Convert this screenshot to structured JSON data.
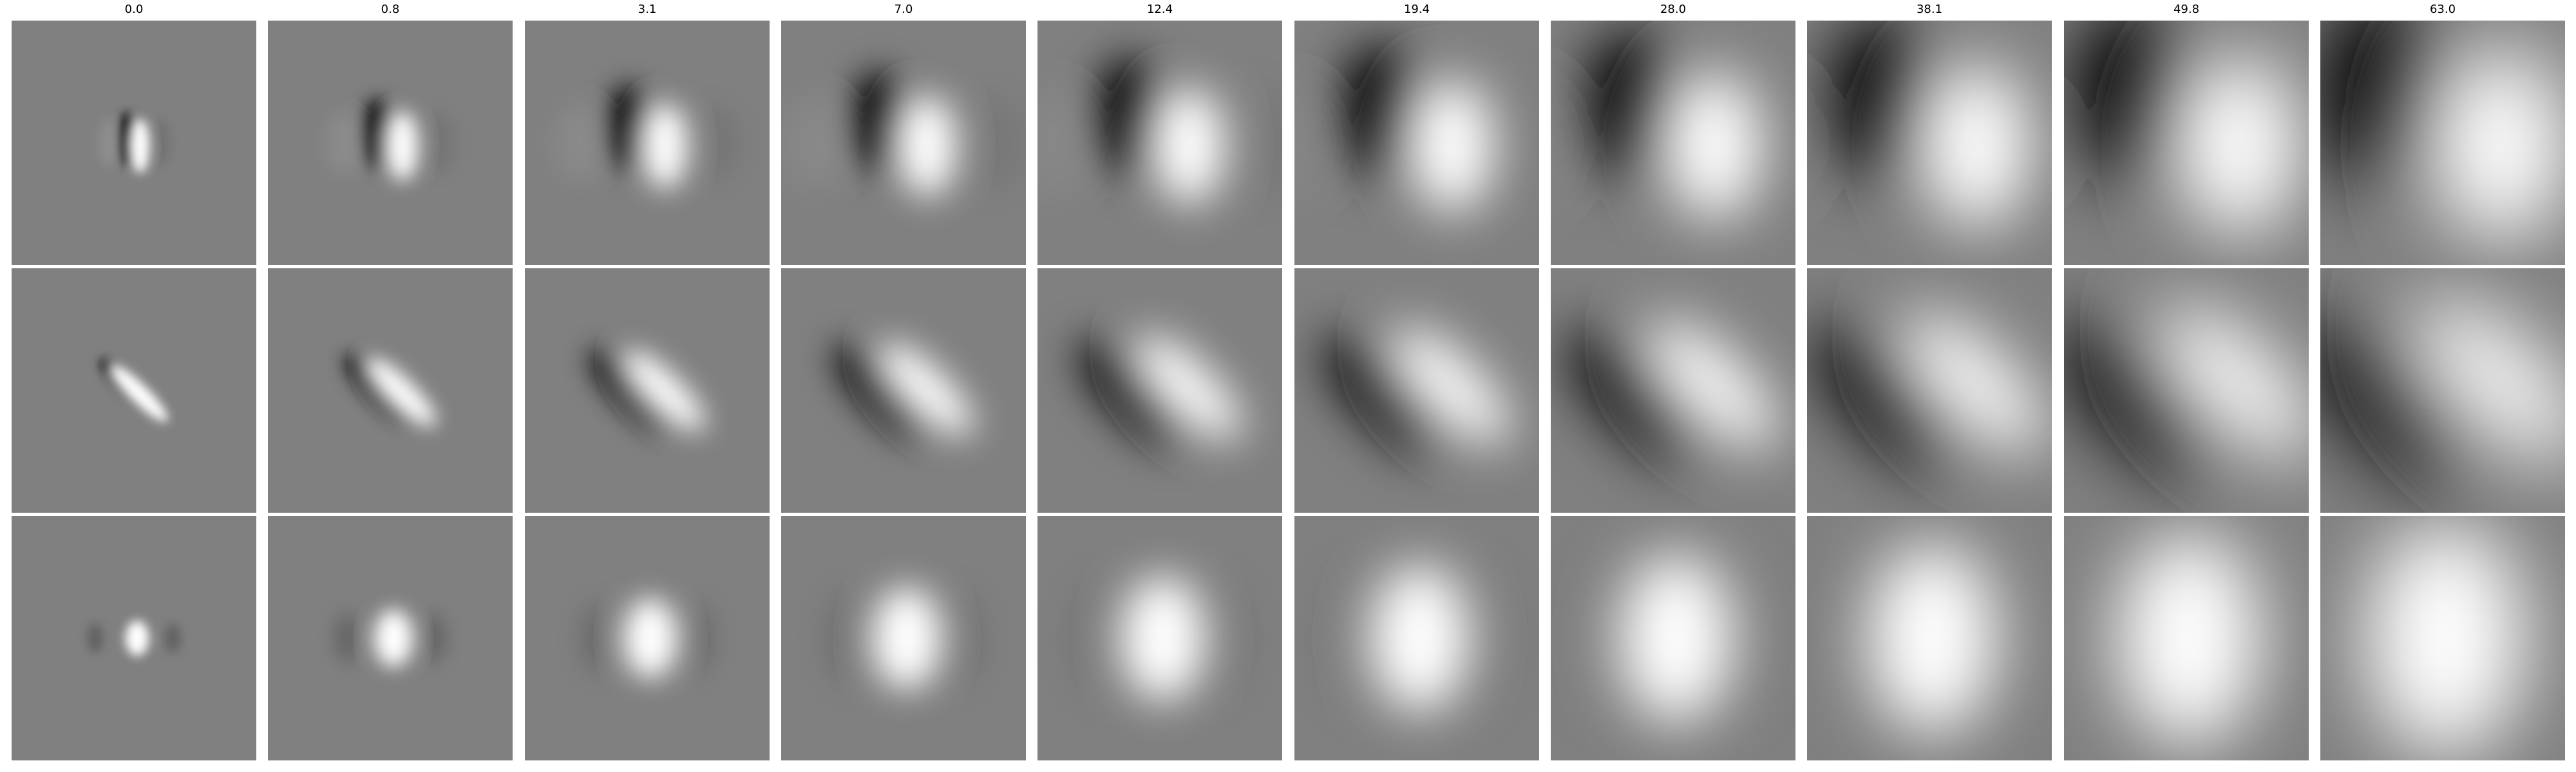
{
  "columns": [
    {
      "title": "0.0"
    },
    {
      "title": "0.8"
    },
    {
      "title": "3.1"
    },
    {
      "title": "7.0"
    },
    {
      "title": "12.4"
    },
    {
      "title": "19.4"
    },
    {
      "title": "28.0"
    },
    {
      "title": "38.1"
    },
    {
      "title": "49.8"
    },
    {
      "title": "63.0"
    }
  ],
  "rows": [
    {
      "pattern": "vertical-dipole-dark-left"
    },
    {
      "pattern": "diagonal-dipole-dark-upper-left"
    },
    {
      "pattern": "center-bright-blob"
    }
  ],
  "colors": {
    "background": "#808080",
    "dark": "#000000",
    "bright": "#ffffff"
  }
}
